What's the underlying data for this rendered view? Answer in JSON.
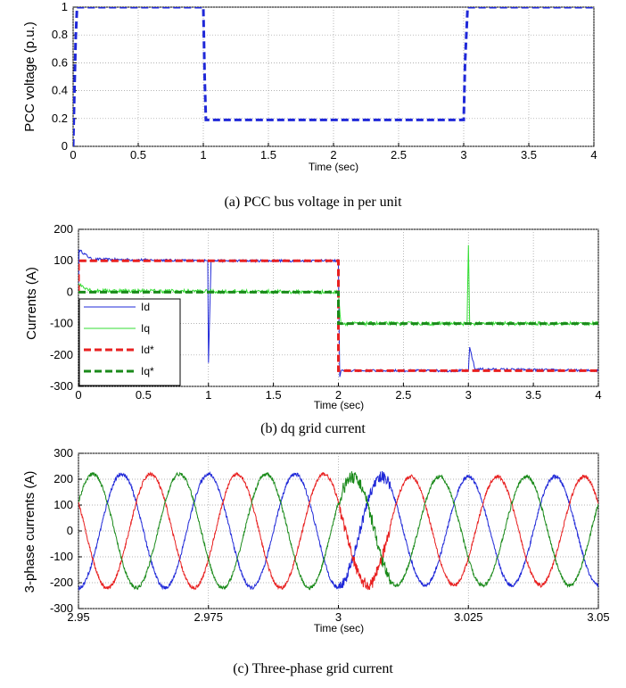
{
  "chart_data": [
    {
      "type": "line",
      "caption": "(a) PCC bus voltage in per unit",
      "xlabel": "Time (sec)",
      "ylabel": "PCC voltage (p.u.)",
      "xlim": [
        0,
        4
      ],
      "ylim": [
        0,
        1
      ],
      "xticks": [
        0,
        0.5,
        1,
        1.5,
        2,
        2.5,
        3,
        3.5,
        4
      ],
      "yticks": [
        0,
        0.2,
        0.4,
        0.6,
        0.8,
        1
      ],
      "grid": true,
      "series": [
        {
          "color": "#1f28d8",
          "dashed": true,
          "x": [
            0,
            0.02,
            0.03,
            0.99,
            1.0,
            1.01,
            1.02,
            3.0,
            3.01,
            3.03,
            4.0
          ],
          "y": [
            0,
            0.78,
            1,
            1,
            1,
            0.5,
            0.19,
            0.19,
            0.6,
            1,
            1
          ]
        }
      ]
    },
    {
      "type": "line",
      "caption": "(b) dq grid current",
      "xlabel": "Time (sec)",
      "ylabel": "Currents (A)",
      "xlim": [
        0,
        4
      ],
      "ylim": [
        -300,
        200
      ],
      "xticks": [
        0,
        0.5,
        1,
        1.5,
        2,
        2.5,
        3,
        3.5,
        4
      ],
      "yticks": [
        -300,
        -200,
        -100,
        0,
        100,
        200
      ],
      "grid": true,
      "legend_position": "bottom-left",
      "series": [
        {
          "name": "Id",
          "color": "#1f28d8",
          "dashed": false,
          "noise": 4,
          "x": [
            0,
            0.005,
            0.1,
            0.99,
            0.995,
            1.0,
            1.02,
            1.99,
            2.0,
            2.01,
            2.02,
            2.99,
            3.0,
            3.01,
            3.05,
            4.0
          ],
          "y": [
            0,
            135,
            105,
            100,
            100,
            -225,
            100,
            100,
            100,
            -270,
            -250,
            -250,
            -250,
            -175,
            -245,
            -250
          ]
        },
        {
          "name": "Iq",
          "color": "#33dd33",
          "dashed": false,
          "noise": 6,
          "x": [
            0,
            0.005,
            0.1,
            1.99,
            2.0,
            2.02,
            2.99,
            3.0,
            3.01,
            3.03,
            4.0
          ],
          "y": [
            0,
            25,
            5,
            0,
            0,
            -100,
            -100,
            150,
            -100,
            -100,
            -100
          ]
        },
        {
          "name": "Id*",
          "color": "#e82020",
          "dashed": true,
          "noise": 0,
          "x": [
            0,
            0.0,
            2.0,
            2.0,
            4.0
          ],
          "y": [
            0,
            100,
            100,
            -250,
            -250
          ]
        },
        {
          "name": "Iq*",
          "color": "#1a8a1a",
          "dashed": true,
          "noise": 0,
          "x": [
            0,
            2.0,
            2.0,
            4.0
          ],
          "y": [
            0,
            0,
            -100,
            -100
          ]
        }
      ]
    },
    {
      "type": "line",
      "caption": "(c) Three-phase grid current",
      "xlabel": "Time (sec)",
      "ylabel": "3-phase currents (A)",
      "xlim": [
        2.95,
        3.05
      ],
      "ylim": [
        -300,
        300
      ],
      "xticks": [
        2.95,
        2.975,
        3,
        3.025,
        3.05
      ],
      "yticks": [
        -300,
        -200,
        -100,
        0,
        100,
        200,
        300
      ],
      "grid": true,
      "series": [
        {
          "color": "#1f28d8",
          "phase_deg": -90,
          "amp_before": 220,
          "amp_after": 210,
          "frequency_hz": 60
        },
        {
          "color": "#e82020",
          "phase_deg": 150,
          "amp_before": 220,
          "amp_after": 210,
          "frequency_hz": 60
        },
        {
          "color": "#1a8a1a",
          "phase_deg": 30,
          "amp_before": 220,
          "amp_after": 210,
          "frequency_hz": 60
        }
      ]
    }
  ]
}
